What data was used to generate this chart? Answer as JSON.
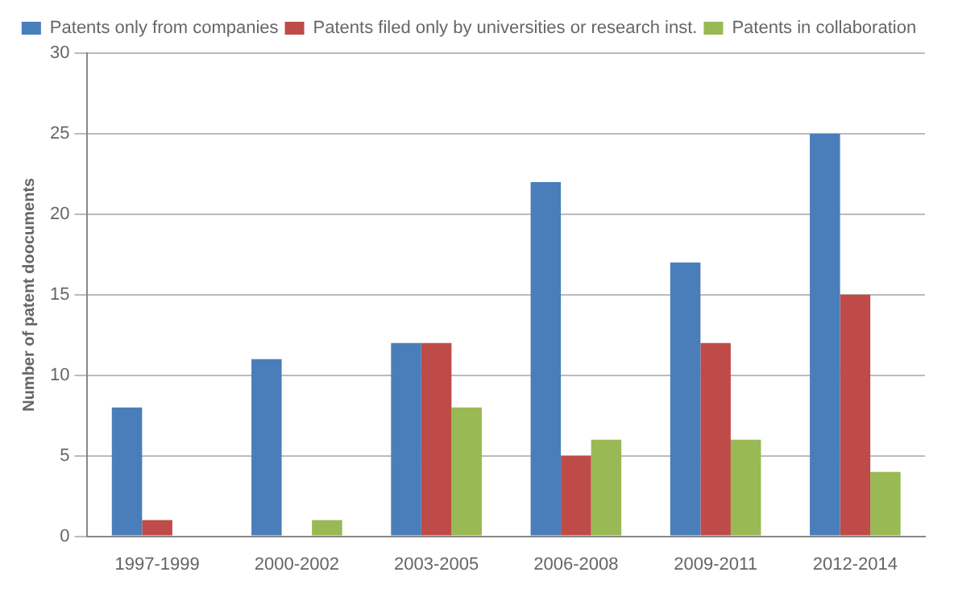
{
  "chart_data": {
    "type": "bar",
    "ylabel": "Number of patent doocuments",
    "categories": [
      "1997-1999",
      "2000-2002",
      "2003-2005",
      "2006-2008",
      "2009-2011",
      "2012-2014"
    ],
    "series": [
      {
        "name": "Patents only from companies",
        "color": "#4a7ebb",
        "values": [
          8,
          11,
          12,
          22,
          17,
          25
        ]
      },
      {
        "name": "Patents filed only by universities or research inst.",
        "color": "#be4b48",
        "values": [
          1,
          0,
          12,
          5,
          12,
          15
        ]
      },
      {
        "name": "Patents in collaboration",
        "color": "#98b954",
        "values": [
          0,
          1,
          8,
          6,
          6,
          4
        ]
      }
    ],
    "ylim": [
      0,
      30
    ],
    "yticks": [
      0,
      5,
      10,
      15,
      20,
      25,
      30
    ],
    "grid": "y",
    "legend": "top"
  }
}
